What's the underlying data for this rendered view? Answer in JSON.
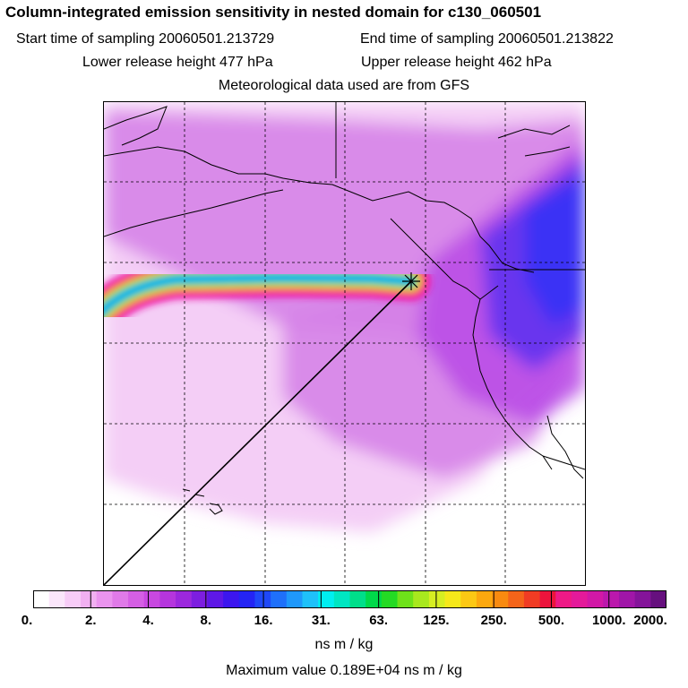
{
  "header": {
    "title": "Column-integrated emission sensitivity in nested domain for c130_060501",
    "start_label": "Start time of sampling 20060501.213729",
    "end_label": "End time of sampling 20060501.213822",
    "lower_label": "Lower release height  477 hPa",
    "upper_label": "Upper release height  462 hPa",
    "met_label": "Meteorological data used are from GFS"
  },
  "colorbar": {
    "colors": [
      "#ffffff",
      "#fbe6fb",
      "#f7ccf7",
      "#f1b0f1",
      "#ea94ee",
      "#e07ae8",
      "#d55fe4",
      "#c848e0",
      "#b535dd",
      "#9c28dd",
      "#7d1ee0",
      "#5e18e6",
      "#3c16ee",
      "#2424f4",
      "#1f48f8",
      "#1f70fa",
      "#1f98fb",
      "#1fc1fa",
      "#00eef0",
      "#00e6c2",
      "#00de8a",
      "#00d94a",
      "#24da24",
      "#6ee21a",
      "#a8e81e",
      "#d6ee22",
      "#f6e81a",
      "#fcc814",
      "#fca80e",
      "#f88a10",
      "#f4641a",
      "#f03c24",
      "#ec143c",
      "#ee1a86",
      "#e41a9a",
      "#d218a6",
      "#bb18ac",
      "#a016a8",
      "#84149a",
      "#66107e"
    ],
    "ticks": [
      "0.",
      "2.",
      "4.",
      "8.",
      "16.",
      "31.",
      "63.",
      "125.",
      "250.",
      "500.",
      "1000.",
      "2000."
    ],
    "units": "ns m / kg"
  },
  "max_value": "Maximum value  0.189E+04 ns m / kg",
  "map": {
    "plume_colors": {
      "light": "#f2c6f4",
      "mid": "#d580e8",
      "violet": "#b84ae6",
      "blue": "#5a30ef",
      "deep": "#3232f6"
    },
    "stripe_colors": [
      "#ec1ab0",
      "#fb1070",
      "#f5d21a",
      "#17d84a",
      "#00e0f0",
      "#1f70fa"
    ],
    "marker": "release-point-star"
  }
}
